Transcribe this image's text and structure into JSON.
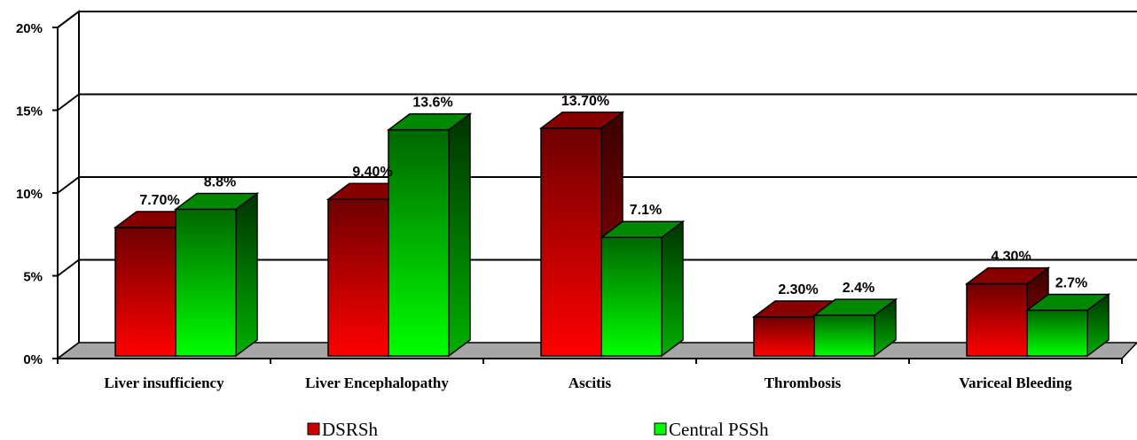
{
  "chart_data": {
    "type": "bar",
    "categories": [
      "Liver insufficiency",
      "Liver Encephalopathy",
      "Ascitis",
      "Thrombosis",
      "Variceal Bleeding"
    ],
    "series": [
      {
        "name": "DSRSh",
        "values": [
          7.7,
          9.4,
          13.7,
          2.3,
          4.3
        ],
        "labels": [
          "7.70%",
          "9.40%",
          "13.70%",
          "2.30%",
          "4.30%"
        ],
        "color": "#cc0000"
      },
      {
        "name": "Central PSSh",
        "values": [
          8.8,
          13.6,
          7.1,
          2.4,
          2.7
        ],
        "labels": [
          "8.8%",
          "13.6%",
          "7.1%",
          "2.4%",
          "2.7%"
        ],
        "color": "#00cc00"
      }
    ],
    "yticks": [
      {
        "value": 0,
        "label": "0%"
      },
      {
        "value": 5,
        "label": "5%"
      },
      {
        "value": 10,
        "label": "10%"
      },
      {
        "value": 15,
        "label": "15%"
      },
      {
        "value": 20,
        "label": "20%"
      }
    ],
    "ylim": [
      0,
      20
    ],
    "grid": true,
    "style": "3d-clustered-column",
    "legend_position": "bottom"
  }
}
